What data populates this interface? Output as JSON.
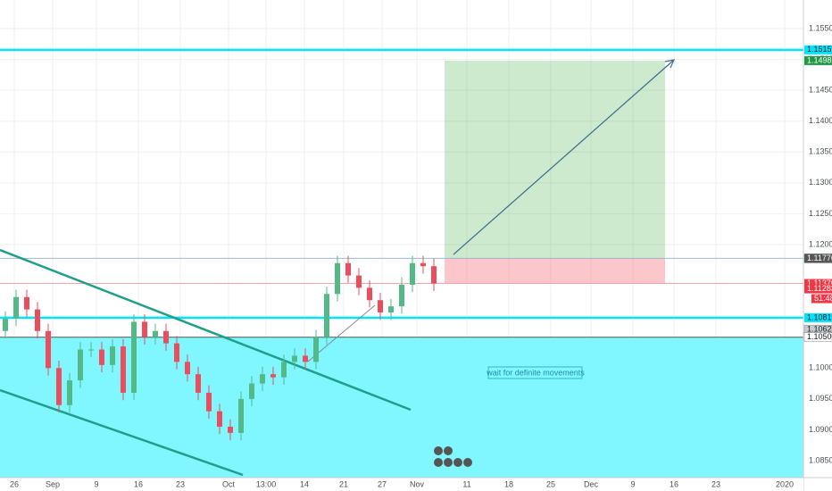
{
  "chart_data": {
    "type": "candlestick",
    "ylim": [
      1.08225,
      1.15963
    ],
    "yticks": [
      {
        "value": 1.155,
        "label": "1.15500"
      },
      {
        "value": 1.15,
        "label": "1.15000"
      },
      {
        "value": 1.145,
        "label": "1.14500"
      },
      {
        "value": 1.14,
        "label": "1.14000"
      },
      {
        "value": 1.135,
        "label": "1.13500"
      },
      {
        "value": 1.13,
        "label": "1.13000"
      },
      {
        "value": 1.125,
        "label": "1.12500"
      },
      {
        "value": 1.12,
        "label": "1.12000"
      },
      {
        "value": 1.1,
        "label": "1.10000"
      },
      {
        "value": 1.095,
        "label": "1.09500"
      },
      {
        "value": 1.09,
        "label": "1.09000"
      },
      {
        "value": 1.085,
        "label": "1.08500"
      }
    ],
    "xticks": [
      "26",
      "Sep",
      "9",
      "16",
      "23",
      "Oct",
      "13:00",
      "14",
      "21",
      "27",
      "Nov",
      "11",
      "18",
      "25",
      "Dec",
      "9",
      "16",
      "23",
      "2020"
    ],
    "up_color": "#53b987",
    "down_color": "#eb4d5c",
    "open": [
      1.106,
      1.108,
      1.1115,
      1.1095,
      1.106,
      1.1,
      1.094,
      1.098,
      1.103,
      1.103,
      1.1005,
      1.1035,
      1.096,
      1.1075,
      1.105,
      1.106,
      1.104,
      1.101,
      1.099,
      1.096,
      1.093,
      1.0905,
      1.0895,
      1.095,
      1.0975,
      1.099,
      1.0985,
      1.101,
      1.102,
      1.101,
      1.105,
      1.112,
      1.117,
      1.115,
      1.113,
      1.111,
      1.109,
      1.11,
      1.1135,
      1.117,
      1.1165
    ],
    "high": [
      1.1092,
      1.1127,
      1.1127,
      1.1107,
      1.1072,
      1.1012,
      1.0992,
      1.1042,
      1.1042,
      1.1042,
      1.1047,
      1.1047,
      1.1087,
      1.1087,
      1.1072,
      1.1072,
      1.1052,
      1.1022,
      1.1002,
      1.0972,
      1.0942,
      1.0917,
      1.0962,
      1.0987,
      1.1002,
      1.1002,
      1.1022,
      1.1032,
      1.1032,
      1.1062,
      1.1132,
      1.1182,
      1.1182,
      1.1162,
      1.1142,
      1.1122,
      1.1112,
      1.1147,
      1.1182,
      1.1182,
      1.1177
    ],
    "low": [
      1.1048,
      1.1068,
      1.1083,
      1.1048,
      1.0988,
      1.0928,
      1.0928,
      1.0968,
      1.1018,
      1.0993,
      1.0993,
      1.0948,
      1.0948,
      1.1038,
      1.1038,
      1.1028,
      1.0998,
      1.0978,
      1.0948,
      1.0918,
      1.0893,
      1.0883,
      1.0883,
      1.0938,
      1.0963,
      1.0973,
      1.0973,
      1.0998,
      1.0998,
      1.0998,
      1.1038,
      1.1108,
      1.1138,
      1.1118,
      1.1098,
      1.1078,
      1.1078,
      1.1088,
      1.1123,
      1.1153,
      1.1125
    ],
    "close": [
      1.108,
      1.1115,
      1.1095,
      1.106,
      1.1,
      1.094,
      1.098,
      1.103,
      1.103,
      1.1005,
      1.1035,
      1.096,
      1.1075,
      1.105,
      1.106,
      1.104,
      1.101,
      1.099,
      1.096,
      1.093,
      1.0905,
      1.0895,
      1.095,
      1.0975,
      1.099,
      1.0985,
      1.101,
      1.102,
      1.101,
      1.105,
      1.112,
      1.117,
      1.115,
      1.113,
      1.111,
      1.109,
      1.11,
      1.1135,
      1.117,
      1.1165,
      1.1137
    ],
    "markers": [
      {
        "price": 1.15155,
        "color": "#00e5ff"
      },
      {
        "price": 1.14981,
        "color": "#1e9a45"
      },
      {
        "price": 1.11778,
        "color": "#b2c7d6"
      },
      {
        "price": 1.11776,
        "color": "#555555"
      },
      {
        "price": 1.1137,
        "label": "1.11370",
        "color": "#f23645"
      },
      {
        "price": 1.11283,
        "color": "#f23645"
      },
      {
        "price": 1.10815,
        "color": "#00e5ff"
      },
      {
        "price": 1.10623,
        "color": "#c5cbce"
      },
      {
        "price": 1.105,
        "label": "1.10500",
        "color": "#ffffff"
      }
    ],
    "countdown": "51:48",
    "annotation": "wait for definite movements"
  }
}
